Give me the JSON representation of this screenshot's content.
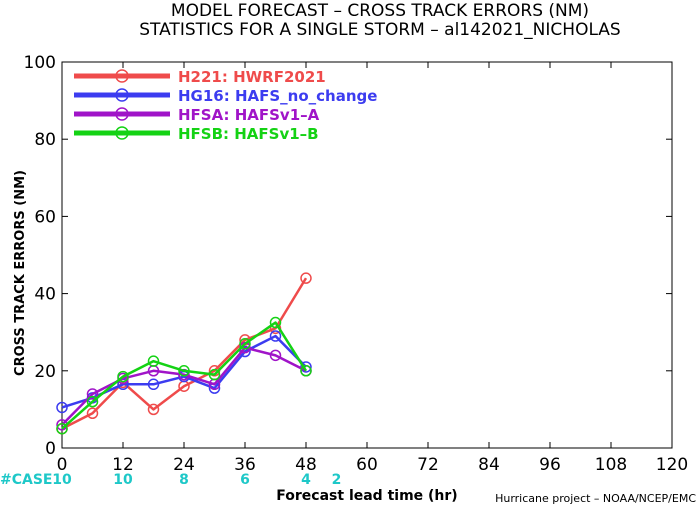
{
  "header": {
    "title_line1": "MODEL FORECAST – CROSS TRACK ERRORS (NM)",
    "title_line2": "STATISTICS FOR A SINGLE STORM – al142021_NICHOLAS"
  },
  "footer": {
    "credit": "Hurricane project – NOAA/NCEP/EMC",
    "case_label": "#CASE"
  },
  "chart_data": {
    "type": "line",
    "xlabel": "Forecast lead time (hr)",
    "ylabel": "CROSS TRACK ERRORS (NM)",
    "xlim": [
      0,
      120
    ],
    "ylim": [
      0,
      100
    ],
    "xticks": [
      0,
      12,
      24,
      36,
      48,
      60,
      72,
      84,
      96,
      108,
      120
    ],
    "yticks": [
      0,
      20,
      40,
      60,
      80,
      100
    ],
    "grid": false,
    "legend_position": "top-left",
    "x": [
      0,
      6,
      12,
      18,
      24,
      30,
      36,
      42,
      48
    ],
    "series": [
      {
        "name": "H221: HWRF2021",
        "color": "#ef4b4b",
        "values": [
          5,
          9,
          17,
          10,
          16,
          20,
          28,
          31,
          44
        ]
      },
      {
        "name": "HG16: HAFS_no_change",
        "color": "#3c3cf0",
        "values": [
          10.5,
          13,
          16.5,
          16.5,
          18.5,
          15.5,
          25,
          29,
          21
        ]
      },
      {
        "name": "HFSA: HAFSv1–A",
        "color": "#a014c8",
        "values": [
          6,
          14,
          18,
          20,
          19,
          16.5,
          26,
          24,
          20
        ]
      },
      {
        "name": "HFSB: HAFSv1–B",
        "color": "#14d214",
        "values": [
          5,
          12,
          18.5,
          22.5,
          20,
          19,
          27,
          32.5,
          20
        ]
      }
    ],
    "case_counts": [
      {
        "x": 0,
        "count": "10"
      },
      {
        "x": 12,
        "count": "10"
      },
      {
        "x": 24,
        "count": "8"
      },
      {
        "x": 36,
        "count": "6"
      },
      {
        "x": 48,
        "count": "4"
      },
      {
        "x": 54,
        "count": "2"
      }
    ],
    "case_color": "#1ec8c8"
  }
}
